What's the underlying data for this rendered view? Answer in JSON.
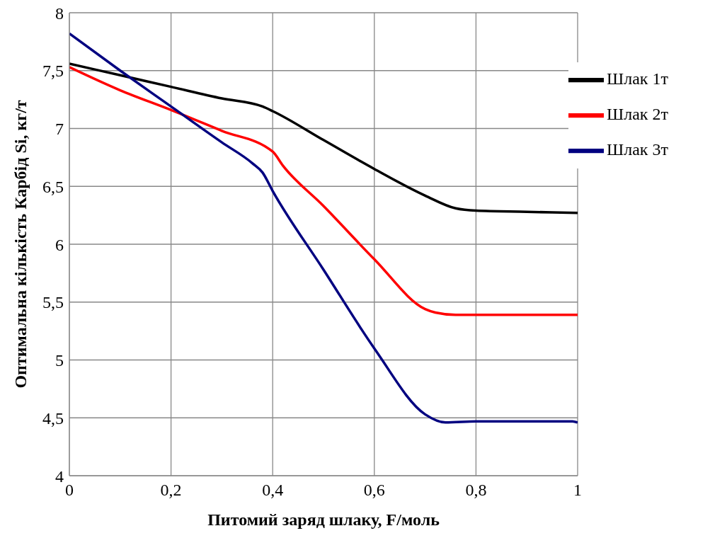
{
  "chart_data": {
    "type": "line",
    "xlabel": "Питомий заряд шлаку, F/моль",
    "ylabel": "Оптимальна кількість Карбід Si, кг/т",
    "xlim": [
      0,
      1
    ],
    "xticks": [
      0,
      {
        "value": 0.2,
        "label": "0,2"
      },
      {
        "value": 0.4,
        "label": "0,4"
      },
      {
        "value": 0.6,
        "label": "0,6"
      },
      {
        "value": 0.8,
        "label": "0,8"
      },
      1
    ],
    "ylim": [
      4,
      8
    ],
    "yticks": [
      4,
      {
        "value": 4.5,
        "label": "4,5"
      },
      5,
      {
        "value": 5.5,
        "label": "5,5"
      },
      6,
      {
        "value": 6.5,
        "label": "6,5"
      },
      7,
      {
        "value": 7.5,
        "label": "7,5"
      },
      8
    ],
    "grid": true,
    "legend": "top right",
    "marker": "none",
    "line_style": "solid",
    "series": [
      {
        "name": "Шлак 1т",
        "color": "#000000",
        "x": [
          0,
          0.1,
          0.2,
          0.3,
          0.38,
          0.4,
          0.5,
          0.6,
          0.7,
          0.76,
          0.8,
          0.9,
          1
        ],
        "values": [
          7.56,
          7.46,
          7.36,
          7.26,
          7.19,
          7.15,
          6.9,
          6.65,
          6.42,
          6.31,
          6.29,
          6.28,
          6.27
        ]
      },
      {
        "name": "Шлак 2т",
        "color": "#ff0000",
        "x": [
          0,
          0.1,
          0.2,
          0.3,
          0.4,
          0.42,
          0.5,
          0.6,
          0.7,
          0.72,
          0.76,
          0.8,
          1
        ],
        "values": [
          7.53,
          7.33,
          7.16,
          6.98,
          6.8,
          6.68,
          6.33,
          5.87,
          5.44,
          5.41,
          5.39,
          5.39,
          5.39
        ]
      },
      {
        "name": "Шлак 3т",
        "color": "#000080",
        "x": [
          0,
          0.1,
          0.2,
          0.3,
          0.36,
          0.38,
          0.4,
          0.5,
          0.6,
          0.7,
          0.74,
          0.8,
          0.99,
          1
        ],
        "values": [
          7.82,
          7.5,
          7.19,
          6.88,
          6.7,
          6.62,
          6.46,
          5.78,
          5.1,
          4.53,
          4.46,
          4.47,
          4.47,
          4.46
        ]
      }
    ]
  }
}
